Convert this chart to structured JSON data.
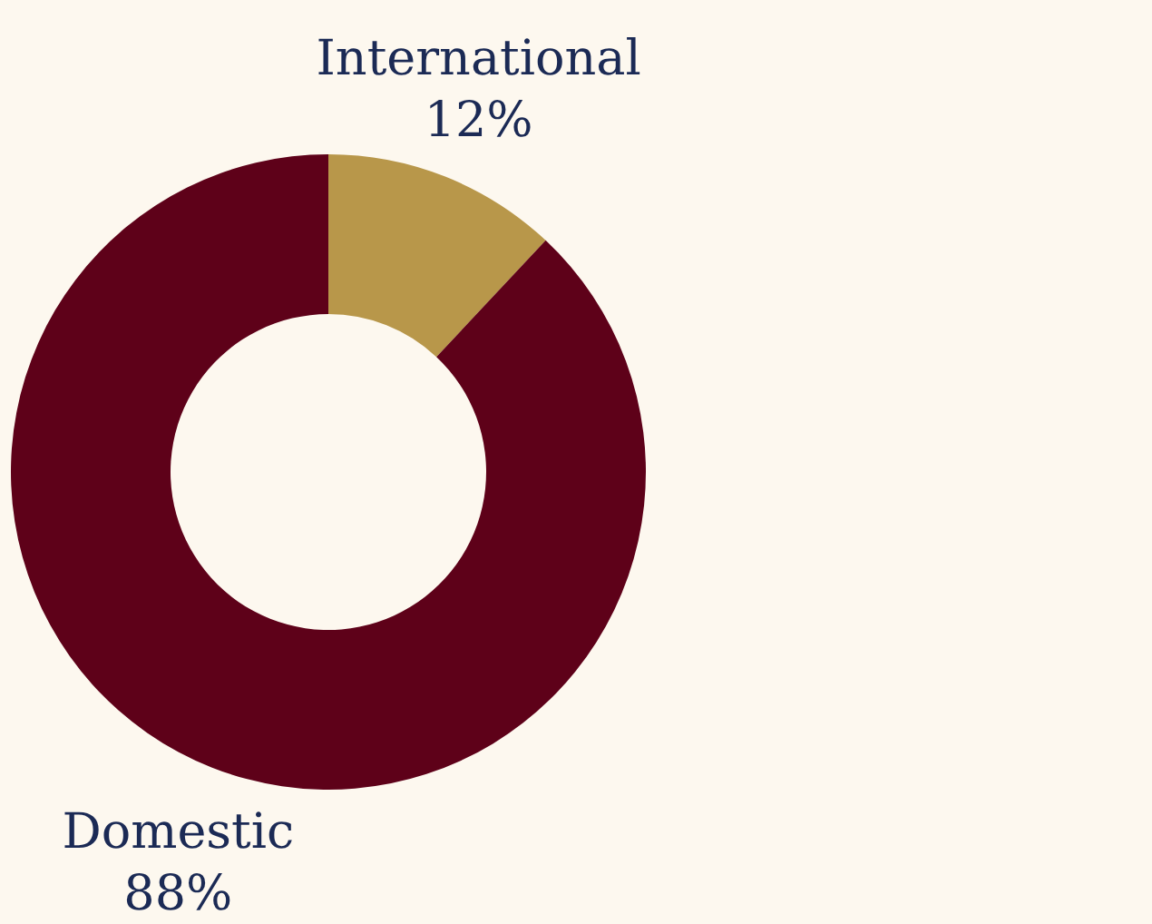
{
  "chart_data": {
    "type": "donut",
    "categories": [
      "International",
      "Domestic"
    ],
    "values": [
      12,
      88
    ],
    "colors": [
      "#b8974a",
      "#5e0119"
    ],
    "value_labels": [
      "12%",
      "88%"
    ]
  }
}
